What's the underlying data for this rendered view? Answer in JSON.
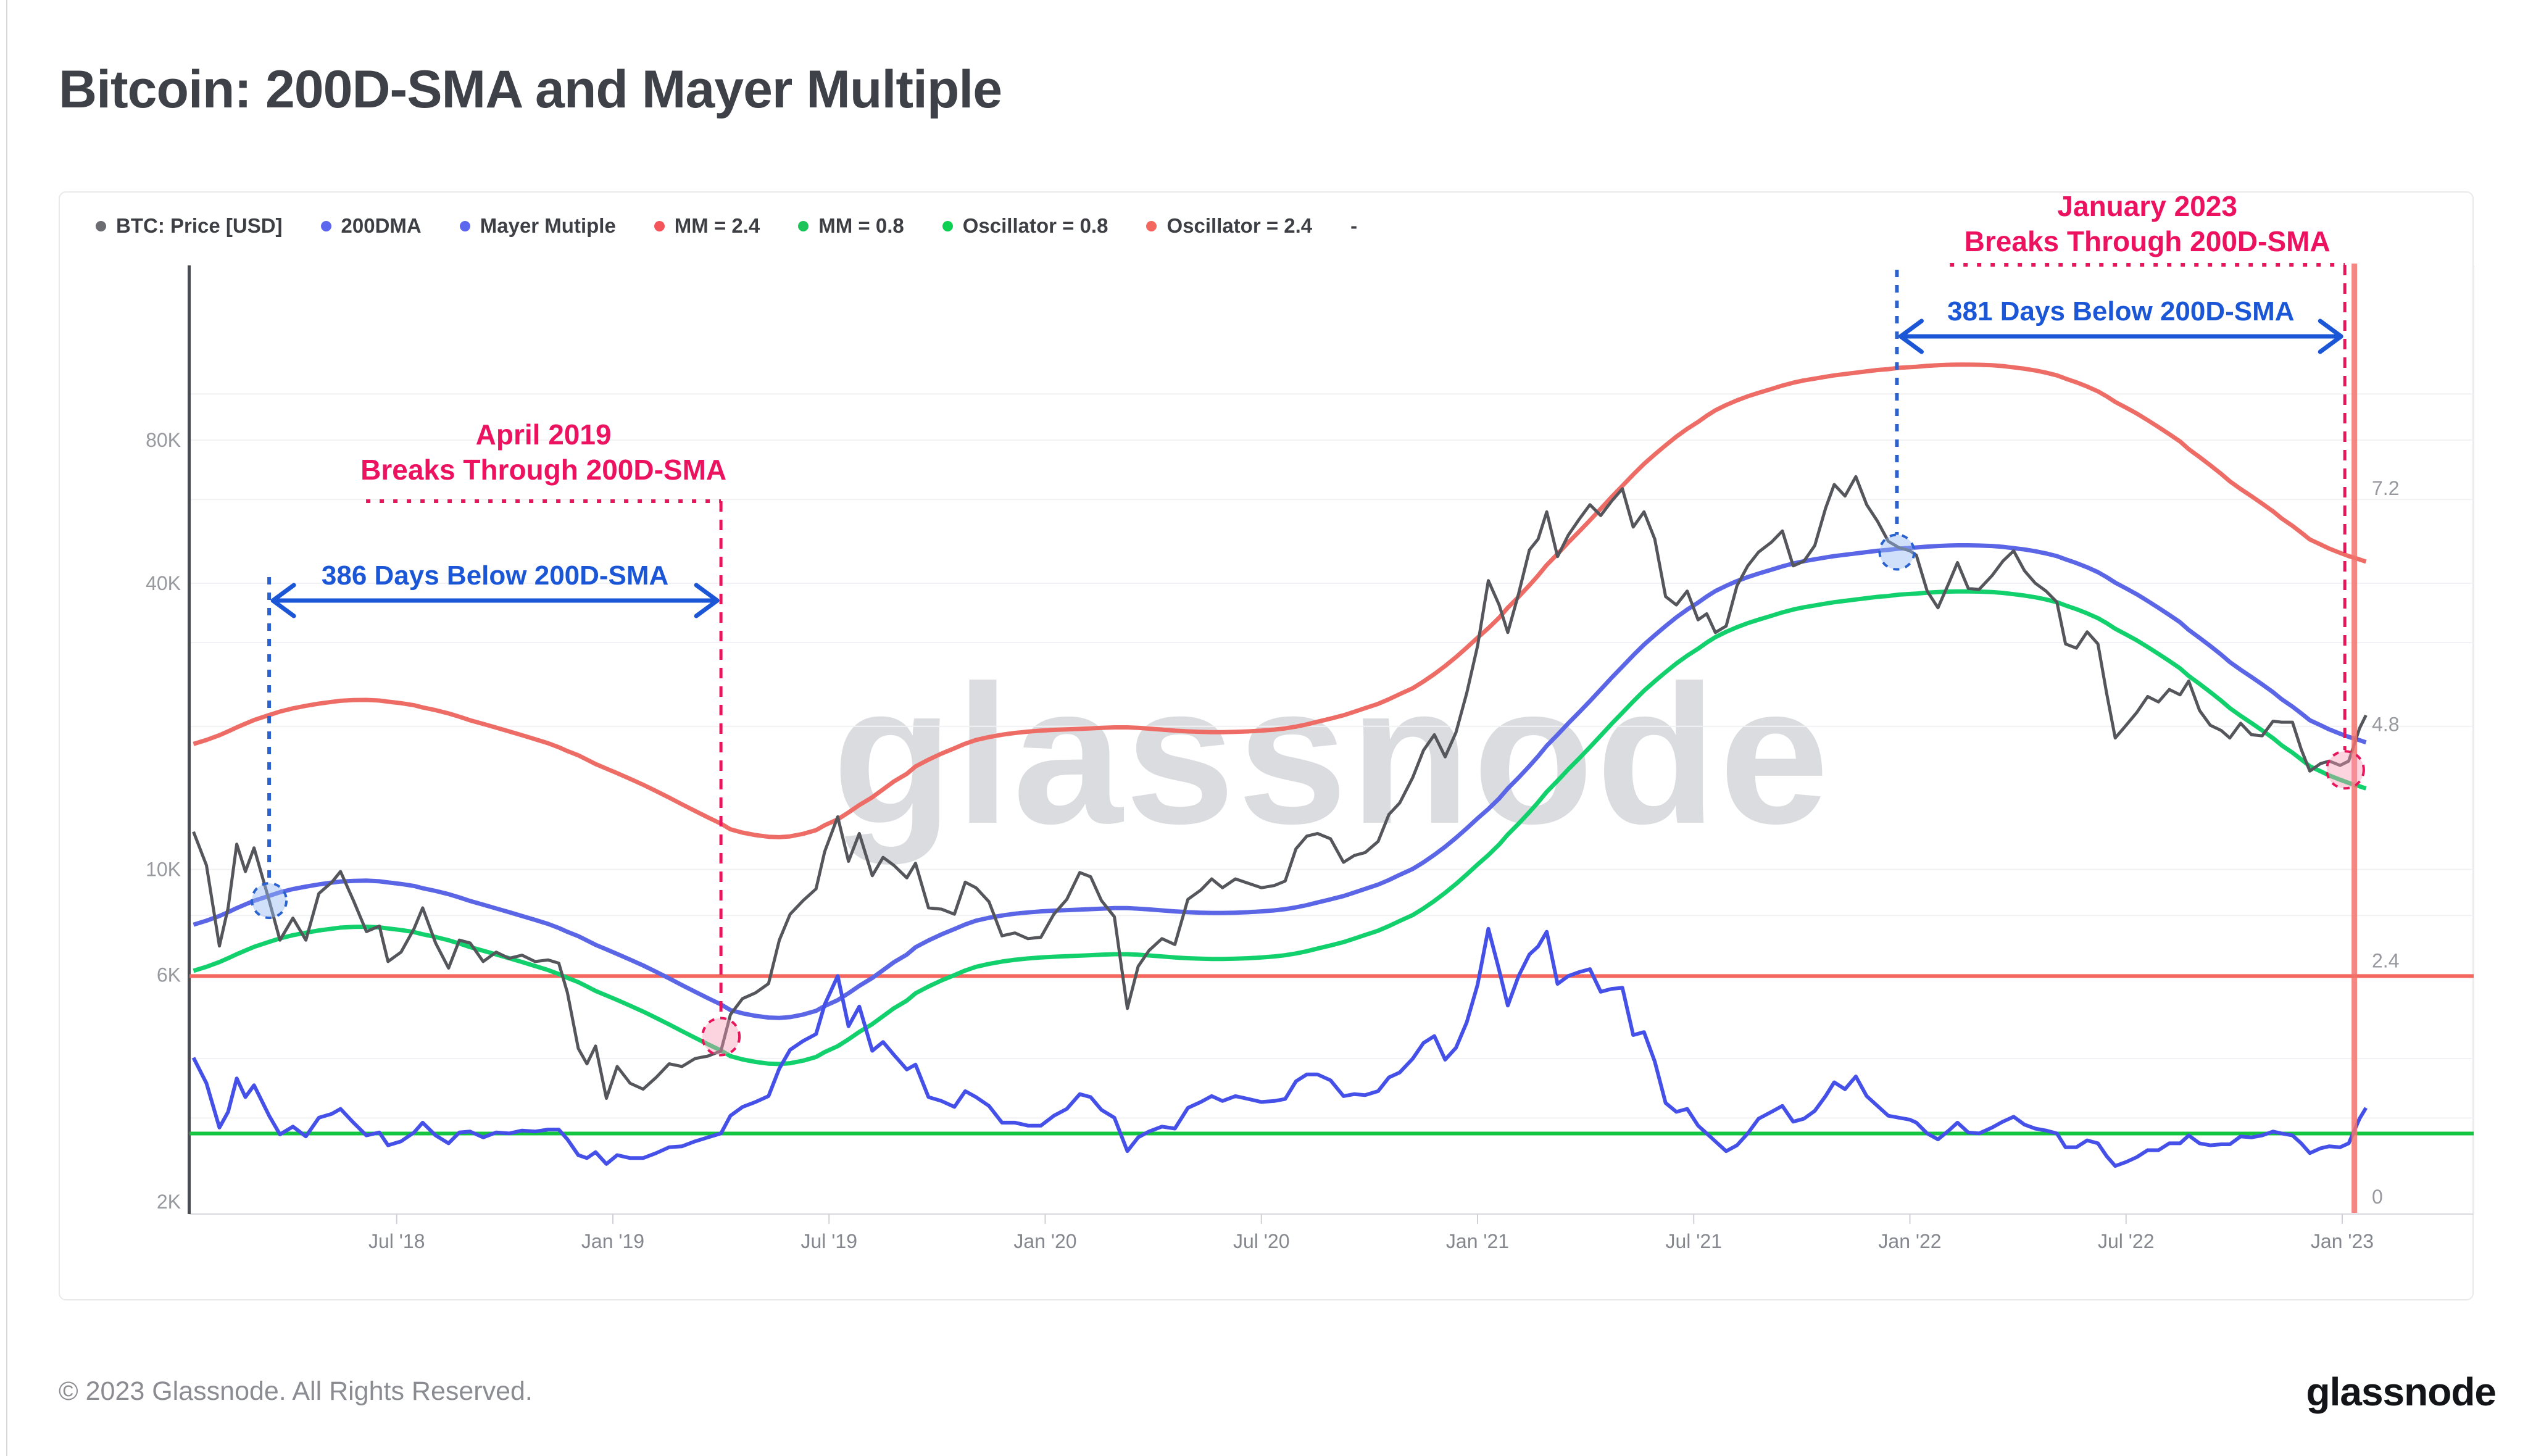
{
  "page": {
    "title": "Bitcoin: 200D-SMA and Mayer Multiple",
    "footer": "© 2023 Glassnode. All Rights Reserved.",
    "brand": "glassnode",
    "watermark": "glassnode"
  },
  "legend": {
    "items": [
      {
        "label": "BTC: Price [USD]",
        "color": "#6a6c72"
      },
      {
        "label": "200DMA",
        "color": "#5b67ee"
      },
      {
        "label": "Mayer Mutiple",
        "color": "#5b67ee"
      },
      {
        "label": "MM = 2.4",
        "color": "#f4555a"
      },
      {
        "label": "MM = 0.8",
        "color": "#1dc459"
      },
      {
        "label": "Oscillator = 0.8",
        "color": "#0bd052"
      },
      {
        "label": "Oscillator = 2.4",
        "color": "#f4675f"
      },
      {
        "label": "-",
        "color": null
      }
    ]
  },
  "chart_data": {
    "type": "line",
    "title": "Bitcoin: 200D-SMA and Mayer Multiple",
    "series_names": [
      "BTC: Price [USD]",
      "200DMA",
      "Mayer Multiple oscillator"
    ],
    "axes": {
      "time": {
        "anchors": [
          [
            2019.0,
            993
          ],
          [
            2023.0,
            3795
          ]
        ],
        "ticks": [
          [
            2018.5,
            "Jul '18"
          ],
          [
            2019.0,
            "Jan '19"
          ],
          [
            2019.5,
            "Jul '19"
          ],
          [
            2020.0,
            "Jan '20"
          ],
          [
            2020.5,
            "Jul '20"
          ],
          [
            2021.0,
            "Jan '21"
          ],
          [
            2021.5,
            "Jul '21"
          ],
          [
            2022.0,
            "Jan '22"
          ],
          [
            2022.5,
            "Jul '22"
          ],
          [
            2023.0,
            "Jan '23"
          ]
        ]
      },
      "price": {
        "scale": "log",
        "anchors": [
          [
            80000,
            713
          ],
          [
            2000,
            1947
          ]
        ],
        "labels": [
          [
            80000,
            "80K"
          ],
          [
            40000,
            "40K"
          ],
          [
            10000,
            "10K"
          ],
          [
            6000,
            "6K"
          ],
          [
            2000,
            "2K"
          ]
        ],
        "gridlines": [
          3000,
          4000,
          6000,
          8000,
          10000,
          20000,
          30000,
          40000,
          60000,
          80000,
          100000
        ]
      },
      "osc": {
        "scale": "linear",
        "anchors": [
          [
            0,
            1964
          ],
          [
            7.2,
            816
          ]
        ],
        "labels": [
          [
            7.2,
            "7.2"
          ],
          [
            4.8,
            "4.8"
          ],
          [
            2.4,
            "2.4"
          ],
          [
            0,
            "0"
          ]
        ],
        "label_offset": -25
      }
    },
    "derived_bands": {
      "upper_multiplier": 2.4,
      "lower_multiplier": 0.8
    },
    "osc_hlines": [
      {
        "value": 2.4,
        "color": "#f4655e"
      },
      {
        "value": 0.8,
        "color": "#13c43f"
      }
    ],
    "vline_t": 2023.028,
    "colors": {
      "price": "#55565c",
      "dma200": "#5b66e6",
      "mayer": "#4450e8",
      "band_upper": "#ee6c66",
      "band_lower": "#12d16d",
      "vline": "#f3736c",
      "annot_pink": "#ec1260",
      "annot_blue": "#1b56d6",
      "circle_blue_fill": "rgba(151,187,245,0.45)",
      "circle_blue_stroke": "#2a62d0",
      "circle_pink_fill": "rgba(247,153,182,0.42)",
      "circle_pink_stroke": "#e8155c"
    },
    "annotations": {
      "left": {
        "title": "April 2019",
        "subtitle": "Breaks Through 200D-SMA",
        "arrow_label": "386 Days Below 200D-SMA",
        "t_start": 2018.205,
        "t_end": 2019.25,
        "circle_start": {
          "t": 2018.205,
          "price": 8600
        },
        "circle_end": {
          "t": 2019.25,
          "price": 4450
        }
      },
      "right": {
        "title": "January 2023",
        "subtitle": "Breaks Through 200D-SMA",
        "arrow_label": "381 Days Below 200D-SMA",
        "t_start": 2021.97,
        "t_end": 2023.006,
        "circle_start": {
          "t": 2021.97,
          "price": 46500
        },
        "circle_end": {
          "t": 2023.007,
          "price": 16200
        }
      }
    },
    "points": [
      [
        2018.03,
        12000,
        7650,
        1.57
      ],
      [
        2018.06,
        10200,
        7800,
        1.31
      ],
      [
        2018.09,
        6900,
        7980,
        0.86
      ],
      [
        2018.11,
        8300,
        8130,
        1.02
      ],
      [
        2018.13,
        11300,
        8290,
        1.36
      ],
      [
        2018.15,
        9900,
        8440,
        1.17
      ],
      [
        2018.17,
        11100,
        8590,
        1.29
      ],
      [
        2018.205,
        8600,
        8800,
        0.98
      ],
      [
        2018.23,
        7100,
        8950,
        0.79
      ],
      [
        2018.26,
        7900,
        9090,
        0.87
      ],
      [
        2018.29,
        7100,
        9200,
        0.77
      ],
      [
        2018.32,
        8900,
        9300,
        0.96
      ],
      [
        2018.35,
        9400,
        9380,
        1.0
      ],
      [
        2018.37,
        9900,
        9430,
        1.05
      ],
      [
        2018.4,
        8600,
        9460,
        0.91
      ],
      [
        2018.43,
        7400,
        9470,
        0.78
      ],
      [
        2018.46,
        7600,
        9440,
        0.81
      ],
      [
        2018.48,
        6400,
        9390,
        0.68
      ],
      [
        2018.51,
        6700,
        9320,
        0.72
      ],
      [
        2018.54,
        7500,
        9230,
        0.81
      ],
      [
        2018.56,
        8300,
        9130,
        0.91
      ],
      [
        2018.59,
        7000,
        9010,
        0.78
      ],
      [
        2018.62,
        6200,
        8870,
        0.7
      ],
      [
        2018.645,
        7100,
        8730,
        0.81
      ],
      [
        2018.67,
        7000,
        8580,
        0.82
      ],
      [
        2018.7,
        6400,
        8430,
        0.76
      ],
      [
        2018.73,
        6700,
        8280,
        0.81
      ],
      [
        2018.76,
        6500,
        8130,
        0.8
      ],
      [
        2018.79,
        6600,
        7980,
        0.83
      ],
      [
        2018.82,
        6400,
        7830,
        0.82
      ],
      [
        2018.85,
        6450,
        7680,
        0.84
      ],
      [
        2018.875,
        6350,
        7530,
        0.84
      ],
      [
        2018.895,
        5500,
        7390,
        0.74
      ],
      [
        2018.92,
        4200,
        7240,
        0.58
      ],
      [
        2018.94,
        3900,
        7090,
        0.55
      ],
      [
        2018.96,
        4250,
        6940,
        0.61
      ],
      [
        2018.985,
        3300,
        6790,
        0.49
      ],
      [
        2019.01,
        3850,
        6640,
        0.58
      ],
      [
        2019.04,
        3550,
        6460,
        0.55
      ],
      [
        2019.07,
        3450,
        6280,
        0.55
      ],
      [
        2019.1,
        3650,
        6090,
        0.6
      ],
      [
        2019.13,
        3900,
        5900,
        0.66
      ],
      [
        2019.16,
        3850,
        5710,
        0.67
      ],
      [
        2019.19,
        4000,
        5530,
        0.72
      ],
      [
        2019.22,
        4050,
        5360,
        0.76
      ],
      [
        2019.25,
        4150,
        5200,
        0.8
      ],
      [
        2019.272,
        4950,
        5060,
        0.98
      ],
      [
        2019.3,
        5350,
        4980,
        1.07
      ],
      [
        2019.33,
        5500,
        4920,
        1.12
      ],
      [
        2019.36,
        5750,
        4880,
        1.18
      ],
      [
        2019.385,
        7100,
        4870,
        1.46
      ],
      [
        2019.41,
        8050,
        4890,
        1.65
      ],
      [
        2019.44,
        8600,
        4950,
        1.74
      ],
      [
        2019.47,
        9100,
        5040,
        1.81
      ],
      [
        2019.49,
        10900,
        5160,
        2.11
      ],
      [
        2019.52,
        12900,
        5310,
        2.4
      ],
      [
        2019.545,
        10400,
        5490,
        1.89
      ],
      [
        2019.57,
        11900,
        5690,
        2.09
      ],
      [
        2019.6,
        9700,
        5910,
        1.64
      ],
      [
        2019.625,
        10600,
        6140,
        1.73
      ],
      [
        2019.65,
        10200,
        6380,
        1.6
      ],
      [
        2019.68,
        9600,
        6620,
        1.45
      ],
      [
        2019.7,
        10300,
        6860,
        1.5
      ],
      [
        2019.73,
        8300,
        7090,
        1.17
      ],
      [
        2019.76,
        8250,
        7300,
        1.13
      ],
      [
        2019.79,
        8050,
        7490,
        1.07
      ],
      [
        2019.815,
        9400,
        7660,
        1.23
      ],
      [
        2019.84,
        9150,
        7800,
        1.17
      ],
      [
        2019.87,
        8550,
        7910,
        1.08
      ],
      [
        2019.9,
        7250,
        8000,
        0.91
      ],
      [
        2019.93,
        7350,
        8070,
        0.91
      ],
      [
        2019.96,
        7150,
        8120,
        0.88
      ],
      [
        2019.99,
        7200,
        8160,
        0.88
      ],
      [
        2020.02,
        8050,
        8190,
        0.98
      ],
      [
        2020.05,
        8650,
        8210,
        1.05
      ],
      [
        2020.08,
        9850,
        8230,
        1.2
      ],
      [
        2020.105,
        9650,
        8250,
        1.17
      ],
      [
        2020.13,
        8600,
        8270,
        1.04
      ],
      [
        2020.16,
        7950,
        8290,
        0.96
      ],
      [
        2020.19,
        5100,
        8290,
        0.62
      ],
      [
        2020.215,
        6250,
        8270,
        0.76
      ],
      [
        2020.24,
        6750,
        8240,
        0.82
      ],
      [
        2020.27,
        7150,
        8200,
        0.87
      ],
      [
        2020.3,
        6950,
        8160,
        0.85
      ],
      [
        2020.33,
        8650,
        8130,
        1.06
      ],
      [
        2020.36,
        9050,
        8110,
        1.12
      ],
      [
        2020.385,
        9550,
        8100,
        1.18
      ],
      [
        2020.41,
        9150,
        8100,
        1.13
      ],
      [
        2020.44,
        9550,
        8110,
        1.18
      ],
      [
        2020.47,
        9350,
        8130,
        1.15
      ],
      [
        2020.5,
        9150,
        8160,
        1.12
      ],
      [
        2020.53,
        9250,
        8200,
        1.13
      ],
      [
        2020.555,
        9450,
        8250,
        1.15
      ],
      [
        2020.58,
        11050,
        8320,
        1.33
      ],
      [
        2020.605,
        11750,
        8410,
        1.4
      ],
      [
        2020.63,
        11900,
        8520,
        1.4
      ],
      [
        2020.66,
        11600,
        8650,
        1.34
      ],
      [
        2020.69,
        10350,
        8790,
        1.18
      ],
      [
        2020.715,
        10700,
        8940,
        1.2
      ],
      [
        2020.74,
        10850,
        9100,
        1.19
      ],
      [
        2020.77,
        11450,
        9290,
        1.23
      ],
      [
        2020.795,
        13050,
        9500,
        1.37
      ],
      [
        2020.82,
        13800,
        9740,
        1.42
      ],
      [
        2020.85,
        15600,
        10020,
        1.56
      ],
      [
        2020.875,
        17800,
        10350,
        1.72
      ],
      [
        2020.9,
        19200,
        10730,
        1.79
      ],
      [
        2020.925,
        17250,
        11160,
        1.55
      ],
      [
        2020.95,
        19400,
        11650,
        1.67
      ],
      [
        2020.975,
        23500,
        12200,
        1.93
      ],
      [
        2021.0,
        29500,
        12800,
        2.31
      ],
      [
        2021.025,
        40500,
        13400,
        2.88
      ],
      [
        2021.05,
        36000,
        14100,
        2.46
      ],
      [
        2021.07,
        31500,
        14800,
        2.1
      ],
      [
        2021.095,
        38000,
        15600,
        2.4
      ],
      [
        2021.12,
        47000,
        16500,
        2.62
      ],
      [
        2021.14,
        49500,
        17300,
        2.7
      ],
      [
        2021.16,
        56500,
        18200,
        2.85
      ],
      [
        2021.185,
        45500,
        19200,
        2.32
      ],
      [
        2021.21,
        50500,
        20300,
        2.4
      ],
      [
        2021.235,
        54500,
        21400,
        2.44
      ],
      [
        2021.26,
        58500,
        22600,
        2.47
      ],
      [
        2021.285,
        55500,
        23900,
        2.24
      ],
      [
        2021.31,
        59500,
        25300,
        2.27
      ],
      [
        2021.335,
        63200,
        26700,
        2.28
      ],
      [
        2021.36,
        52500,
        28200,
        1.8
      ],
      [
        2021.385,
        56500,
        29700,
        1.83
      ],
      [
        2021.41,
        49500,
        31100,
        1.53
      ],
      [
        2021.435,
        37500,
        32500,
        1.11
      ],
      [
        2021.46,
        36000,
        33900,
        1.02
      ],
      [
        2021.485,
        38500,
        35200,
        1.05
      ],
      [
        2021.51,
        33500,
        36400,
        0.88
      ],
      [
        2021.53,
        34500,
        37500,
        0.8
      ],
      [
        2021.55,
        31500,
        38500,
        0.72
      ],
      [
        2021.575,
        32500,
        39500,
        0.62
      ],
      [
        2021.6,
        39500,
        40400,
        0.68
      ],
      [
        2021.625,
        43500,
        41200,
        0.8
      ],
      [
        2021.65,
        46500,
        41900,
        0.95
      ],
      [
        2021.68,
        48800,
        42700,
        1.02
      ],
      [
        2021.705,
        51500,
        43400,
        1.08
      ],
      [
        2021.73,
        43500,
        44000,
        0.92
      ],
      [
        2021.755,
        44500,
        44500,
        0.95
      ],
      [
        2021.78,
        48000,
        44900,
        1.03
      ],
      [
        2021.805,
        57500,
        45300,
        1.18
      ],
      [
        2021.825,
        64500,
        45600,
        1.32
      ],
      [
        2021.85,
        61000,
        45900,
        1.25
      ],
      [
        2021.875,
        67000,
        46200,
        1.38
      ],
      [
        2021.9,
        58500,
        46500,
        1.18
      ],
      [
        2021.925,
        54000,
        46800,
        1.08
      ],
      [
        2021.95,
        49000,
        47000,
        0.98
      ],
      [
        2021.975,
        47500,
        47300,
        0.96
      ],
      [
        2022.0,
        46800,
        47450,
        0.94
      ],
      [
        2022.015,
        45800,
        47550,
        0.91
      ],
      [
        2022.04,
        38500,
        47750,
        0.8
      ],
      [
        2022.065,
        35500,
        47900,
        0.74
      ],
      [
        2022.09,
        40000,
        48000,
        0.83
      ],
      [
        2022.11,
        44200,
        48050,
        0.91
      ],
      [
        2022.135,
        39000,
        48050,
        0.81
      ],
      [
        2022.16,
        38800,
        48000,
        0.8
      ],
      [
        2022.19,
        41500,
        47900,
        0.86
      ],
      [
        2022.215,
        44500,
        47700,
        0.92
      ],
      [
        2022.24,
        46800,
        47400,
        0.97
      ],
      [
        2022.265,
        42500,
        47100,
        0.89
      ],
      [
        2022.29,
        40000,
        46700,
        0.85
      ],
      [
        2022.315,
        38500,
        46200,
        0.83
      ],
      [
        2022.34,
        36500,
        45600,
        0.8
      ],
      [
        2022.36,
        29800,
        44900,
        0.66
      ],
      [
        2022.385,
        29200,
        44100,
        0.66
      ],
      [
        2022.41,
        31600,
        43200,
        0.73
      ],
      [
        2022.435,
        29800,
        42200,
        0.7
      ],
      [
        2022.455,
        23500,
        41200,
        0.57
      ],
      [
        2022.475,
        18900,
        40100,
        0.47
      ],
      [
        2022.5,
        20100,
        39000,
        0.51
      ],
      [
        2022.525,
        21400,
        37900,
        0.56
      ],
      [
        2022.55,
        23100,
        36700,
        0.63
      ],
      [
        2022.575,
        22500,
        35500,
        0.63
      ],
      [
        2022.6,
        23900,
        34300,
        0.7
      ],
      [
        2022.625,
        23300,
        33100,
        0.7
      ],
      [
        2022.645,
        24900,
        31900,
        0.78
      ],
      [
        2022.67,
        21600,
        30700,
        0.7
      ],
      [
        2022.695,
        20100,
        29500,
        0.68
      ],
      [
        2022.72,
        19600,
        28300,
        0.69
      ],
      [
        2022.74,
        18900,
        27300,
        0.69
      ],
      [
        2022.765,
        20300,
        26300,
        0.77
      ],
      [
        2022.79,
        19200,
        25400,
        0.76
      ],
      [
        2022.815,
        19100,
        24500,
        0.78
      ],
      [
        2022.84,
        20500,
        23600,
        0.82
      ],
      [
        2022.86,
        20400,
        22800,
        0.8
      ],
      [
        2022.885,
        20400,
        22000,
        0.78
      ],
      [
        2022.905,
        17900,
        21300,
        0.7
      ],
      [
        2022.925,
        16100,
        20600,
        0.6
      ],
      [
        2022.95,
        16700,
        20100,
        0.65
      ],
      [
        2022.97,
        16900,
        19700,
        0.67
      ],
      [
        2022.995,
        16550,
        19300,
        0.66
      ],
      [
        2023.015,
        16900,
        19000,
        0.7
      ],
      [
        2023.04,
        19800,
        18700,
        0.95
      ],
      [
        2023.055,
        21100,
        18500,
        1.06
      ]
    ]
  }
}
